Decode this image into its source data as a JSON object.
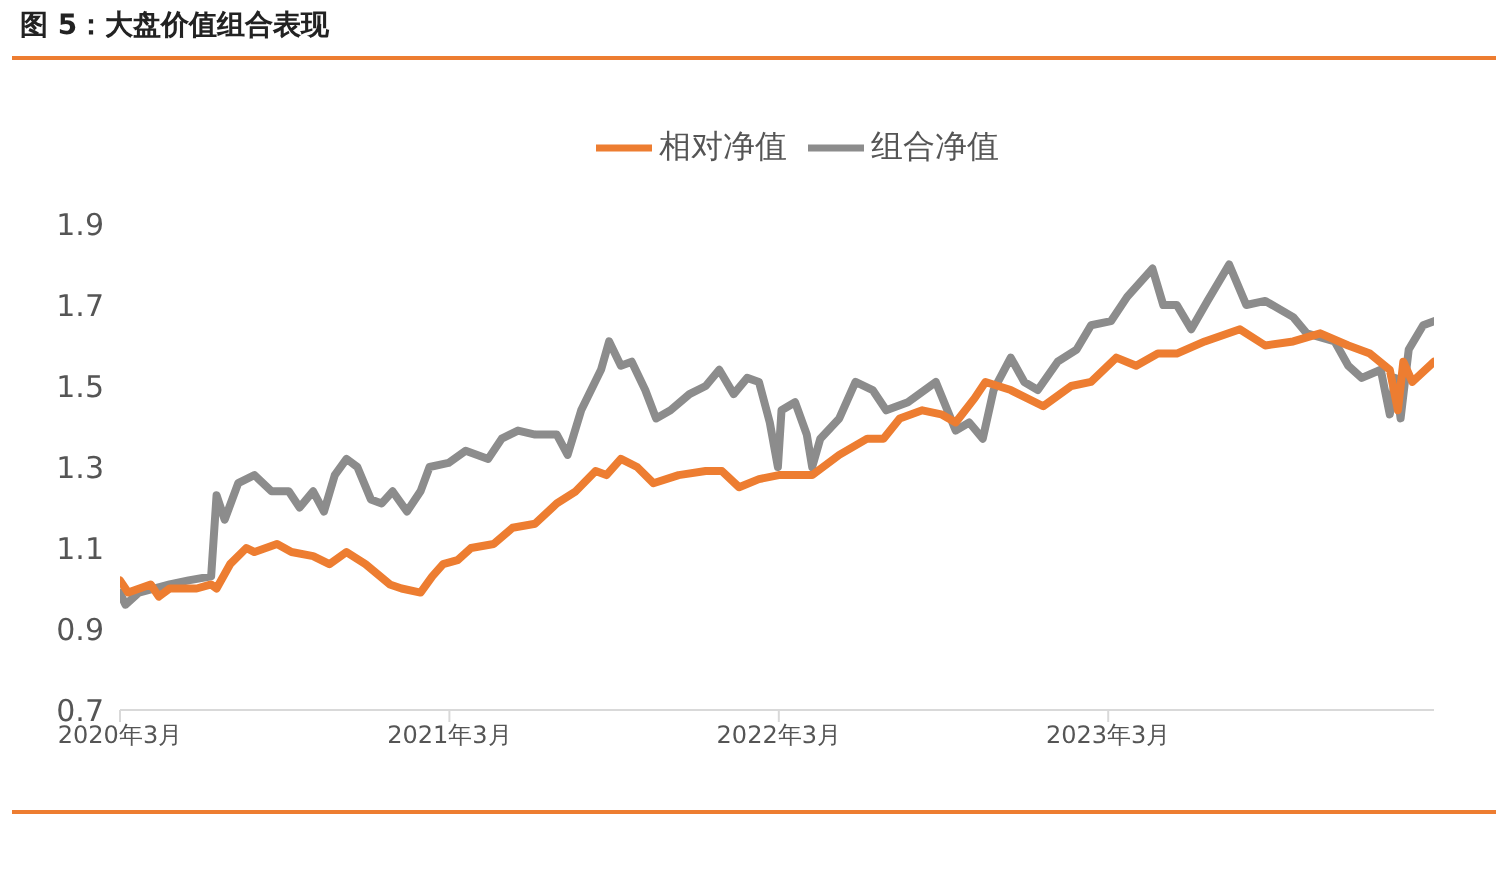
{
  "chart_data": {
    "type": "line",
    "title": "图 5：大盘价值组合表现",
    "xlim": [
      "2020-03-01",
      "2024-02-25"
    ],
    "xticks": [
      {
        "value": "2020-03-01",
        "label": "2020年3月"
      },
      {
        "value": "2021-03-01",
        "label": "2021年3月"
      },
      {
        "value": "2022-03-01",
        "label": "2022年3月"
      },
      {
        "value": "2023-03-01",
        "label": "2023年3月"
      }
    ],
    "ylim": [
      0.7,
      1.9
    ],
    "yticks": [
      0.7,
      0.9,
      1.1,
      1.3,
      1.5,
      1.7,
      1.9
    ],
    "grid": false,
    "legend": "top",
    "marker": "none",
    "line_style": "solid",
    "series": [
      {
        "name": "组合净值",
        "color": "#8c8c8c",
        "x": [
          "2020-03-01",
          "2020-03-07",
          "2020-03-22",
          "2020-04-25",
          "2020-05-16",
          "2020-06-10",
          "2020-06-16",
          "2020-06-25",
          "2020-07-10",
          "2020-07-28",
          "2020-08-16",
          "2020-09-04",
          "2020-09-16",
          "2020-10-01",
          "2020-10-13",
          "2020-10-25",
          "2020-11-07",
          "2020-11-19",
          "2020-12-04",
          "2020-12-16",
          "2020-12-28",
          "2021-01-13",
          "2021-01-28",
          "2021-02-07",
          "2021-02-28",
          "2021-03-19",
          "2021-04-13",
          "2021-04-28",
          "2021-05-16",
          "2021-06-04",
          "2021-06-28",
          "2021-07-10",
          "2021-07-25",
          "2021-08-16",
          "2021-08-25",
          "2021-09-07",
          "2021-09-19",
          "2021-10-04",
          "2021-10-16",
          "2021-11-01",
          "2021-11-22",
          "2021-12-10",
          "2021-12-25",
          "2022-01-10",
          "2022-01-25",
          "2022-02-07",
          "2022-02-19",
          "2022-02-28",
          "2022-03-04",
          "2022-03-19",
          "2022-04-01",
          "2022-04-07",
          "2022-04-16",
          "2022-05-07",
          "2022-05-25",
          "2022-06-13",
          "2022-06-28",
          "2022-07-22",
          "2022-08-22",
          "2022-09-13",
          "2022-09-28",
          "2022-10-13",
          "2022-10-25",
          "2022-11-13",
          "2022-11-28",
          "2022-12-13",
          "2023-01-04",
          "2023-01-25",
          "2023-02-10",
          "2023-03-04",
          "2023-03-22",
          "2023-04-19",
          "2023-05-01",
          "2023-05-16",
          "2023-06-01",
          "2023-06-19",
          "2023-07-13",
          "2023-08-01",
          "2023-08-22",
          "2023-09-22",
          "2023-10-07",
          "2023-11-07",
          "2023-11-22",
          "2023-12-07",
          "2023-12-28",
          "2024-01-07",
          "2024-01-13",
          "2024-01-19",
          "2024-01-28",
          "2024-02-13",
          "2024-02-25"
        ],
        "values": [
          0.99,
          0.96,
          0.99,
          1.01,
          1.02,
          1.03,
          1.23,
          1.17,
          1.26,
          1.28,
          1.24,
          1.24,
          1.2,
          1.24,
          1.19,
          1.28,
          1.32,
          1.3,
          1.22,
          1.21,
          1.24,
          1.19,
          1.24,
          1.3,
          1.31,
          1.34,
          1.32,
          1.37,
          1.39,
          1.38,
          1.38,
          1.33,
          1.44,
          1.54,
          1.61,
          1.55,
          1.56,
          1.49,
          1.42,
          1.44,
          1.48,
          1.5,
          1.54,
          1.48,
          1.52,
          1.51,
          1.41,
          1.3,
          1.44,
          1.46,
          1.38,
          1.3,
          1.37,
          1.42,
          1.51,
          1.49,
          1.44,
          1.46,
          1.51,
          1.39,
          1.41,
          1.37,
          1.49,
          1.57,
          1.51,
          1.49,
          1.56,
          1.59,
          1.65,
          1.66,
          1.72,
          1.79,
          1.7,
          1.7,
          1.64,
          1.71,
          1.8,
          1.7,
          1.71,
          1.67,
          1.63,
          1.61,
          1.55,
          1.52,
          1.54,
          1.43,
          1.52,
          1.42,
          1.59,
          1.65,
          1.66
        ]
      },
      {
        "name": "相对净值",
        "color": "#ed7d31",
        "x": [
          "2020-03-01",
          "2020-03-10",
          "2020-04-04",
          "2020-04-13",
          "2020-04-25",
          "2020-05-25",
          "2020-06-10",
          "2020-06-16",
          "2020-07-01",
          "2020-07-19",
          "2020-07-28",
          "2020-08-22",
          "2020-09-07",
          "2020-10-01",
          "2020-10-19",
          "2020-11-07",
          "2020-11-28",
          "2020-12-25",
          "2021-01-07",
          "2021-01-28",
          "2021-02-10",
          "2021-02-22",
          "2021-03-10",
          "2021-03-25",
          "2021-04-19",
          "2021-05-10",
          "2021-06-04",
          "2021-06-28",
          "2021-07-19",
          "2021-08-10",
          "2021-08-22",
          "2021-09-07",
          "2021-09-25",
          "2021-10-13",
          "2021-11-10",
          "2021-12-10",
          "2021-12-28",
          "2022-01-16",
          "2022-02-07",
          "2022-03-01",
          "2022-04-07",
          "2022-05-07",
          "2022-06-07",
          "2022-06-25",
          "2022-07-13",
          "2022-08-07",
          "2022-08-28",
          "2022-09-13",
          "2022-10-04",
          "2022-10-16",
          "2022-11-13",
          "2022-12-19",
          "2023-01-19",
          "2023-02-10",
          "2023-03-10",
          "2023-04-01",
          "2023-04-25",
          "2023-05-16",
          "2023-06-16",
          "2023-07-25",
          "2023-08-22",
          "2023-09-22",
          "2023-10-22",
          "2023-11-22",
          "2023-12-16",
          "2024-01-07",
          "2024-01-16",
          "2024-01-22",
          "2024-02-01",
          "2024-02-25"
        ],
        "values": [
          1.02,
          0.99,
          1.01,
          0.98,
          1.0,
          1.0,
          1.01,
          1.0,
          1.06,
          1.1,
          1.09,
          1.11,
          1.09,
          1.08,
          1.06,
          1.09,
          1.06,
          1.01,
          1.0,
          0.99,
          1.03,
          1.06,
          1.07,
          1.1,
          1.11,
          1.15,
          1.16,
          1.21,
          1.24,
          1.29,
          1.28,
          1.32,
          1.3,
          1.26,
          1.28,
          1.29,
          1.29,
          1.25,
          1.27,
          1.28,
          1.28,
          1.33,
          1.37,
          1.37,
          1.42,
          1.44,
          1.43,
          1.41,
          1.47,
          1.51,
          1.49,
          1.45,
          1.5,
          1.51,
          1.57,
          1.55,
          1.58,
          1.58,
          1.61,
          1.64,
          1.6,
          1.61,
          1.63,
          1.6,
          1.58,
          1.54,
          1.44,
          1.56,
          1.51,
          1.56
        ]
      }
    ]
  }
}
